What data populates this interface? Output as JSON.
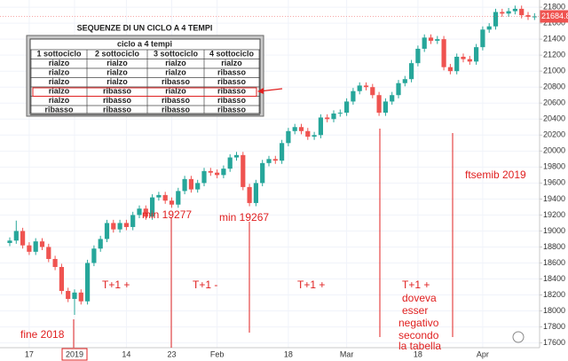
{
  "chart_data": {
    "type": "candlestick",
    "categories": [
      null,
      null,
      null,
      "17",
      null,
      null,
      null,
      null,
      null,
      null,
      "2019",
      null,
      null,
      null,
      null,
      null,
      null,
      null,
      "14",
      null,
      null,
      null,
      null,
      null,
      null,
      "23",
      null,
      null,
      null,
      null,
      null,
      null,
      "Feb",
      null,
      null,
      null,
      null,
      null,
      null,
      null,
      null,
      null,
      null,
      "18",
      null,
      null,
      null,
      null,
      null,
      null,
      null,
      null,
      "Mar",
      null,
      null,
      null,
      null,
      null,
      null,
      null,
      null,
      null,
      null,
      "18",
      null,
      null,
      null,
      null,
      null,
      null,
      null,
      null,
      null,
      "Apr",
      null,
      null,
      null,
      null,
      null,
      null,
      null,
      null
    ],
    "open": [
      18850,
      18880,
      19000,
      18820,
      18740,
      18870,
      18800,
      18650,
      18550,
      18250,
      18150,
      18230,
      18120,
      18600,
      18780,
      18900,
      19100,
      19020,
      19100,
      19050,
      19200,
      19280,
      19180,
      19420,
      19450,
      19380,
      19330,
      19500,
      19650,
      19520,
      19600,
      19750,
      19730,
      19700,
      19780,
      19920,
      19950,
      19550,
      19350,
      19600,
      19850,
      19900,
      19880,
      20100,
      20250,
      20300,
      20250,
      20180,
      20200,
      20420,
      20400,
      20470,
      20480,
      20620,
      20750,
      20820,
      20800,
      20700,
      20480,
      20620,
      20700,
      20850,
      20900,
      21100,
      21280,
      21420,
      21380,
      21400,
      21050,
      21000,
      21180,
      21150,
      21120,
      21300,
      21520,
      21560,
      21740,
      21720,
      21750,
      21780,
      21700,
      21680
    ],
    "high": [
      18920,
      19130,
      19040,
      18860,
      18910,
      18910,
      18840,
      18690,
      18590,
      18290,
      18270,
      18270,
      18640,
      18820,
      18940,
      19140,
      19140,
      19140,
      19140,
      19240,
      19320,
      19320,
      19460,
      19490,
      19490,
      19420,
      19540,
      19690,
      19690,
      19640,
      19790,
      19790,
      19770,
      19820,
      19960,
      19990,
      19990,
      19590,
      19640,
      19890,
      19940,
      19940,
      20140,
      20290,
      20340,
      20340,
      20290,
      20240,
      20460,
      20460,
      20510,
      20520,
      20660,
      20790,
      20860,
      20860,
      20840,
      20740,
      20660,
      20740,
      20890,
      20940,
      21140,
      21320,
      21460,
      21460,
      21440,
      21440,
      21090,
      21220,
      21220,
      21190,
      21340,
      21560,
      21600,
      21780,
      21780,
      21790,
      21820,
      21820,
      21740,
      21725
    ],
    "low": [
      18810,
      18840,
      18780,
      18700,
      18700,
      18760,
      18610,
      18510,
      18210,
      18110,
      17950,
      18080,
      18080,
      18560,
      18740,
      18860,
      18980,
      18980,
      19010,
      19010,
      19160,
      19140,
      19140,
      19380,
      19340,
      19290,
      19290,
      19460,
      19480,
      19480,
      19560,
      19690,
      19660,
      19660,
      19740,
      19880,
      19510,
      19310,
      19310,
      19560,
      19810,
      19840,
      19840,
      20060,
      20210,
      20210,
      20140,
      20140,
      20160,
      20360,
      20360,
      20430,
      20440,
      20580,
      20710,
      20760,
      20660,
      20440,
      20440,
      20580,
      20660,
      20810,
      20860,
      21060,
      21240,
      21340,
      21340,
      21010,
      20960,
      20960,
      21110,
      21080,
      21080,
      21260,
      21480,
      21520,
      21680,
      21680,
      21710,
      21660,
      21640,
      21640
    ],
    "close": [
      18880,
      19000,
      18820,
      18740,
      18870,
      18800,
      18650,
      18550,
      18250,
      18150,
      18230,
      18120,
      18600,
      18780,
      18900,
      19100,
      19020,
      19100,
      19050,
      19200,
      19280,
      19180,
      19420,
      19450,
      19380,
      19330,
      19500,
      19650,
      19520,
      19600,
      19750,
      19730,
      19700,
      19780,
      19920,
      19950,
      19550,
      19350,
      19600,
      19850,
      19900,
      19880,
      20100,
      20250,
      20300,
      20250,
      20180,
      20200,
      20420,
      20400,
      20470,
      20480,
      20620,
      20750,
      20820,
      20800,
      20700,
      20480,
      20620,
      20700,
      20850,
      20900,
      21100,
      21280,
      21420,
      21380,
      21400,
      21050,
      21000,
      21180,
      21150,
      21120,
      21300,
      21520,
      21560,
      21740,
      21720,
      21750,
      21780,
      21700,
      21680,
      21684.84
    ],
    "up_color": "#26a69a",
    "down_color": "#ef5350",
    "ylim": [
      17540,
      21890
    ],
    "yticks": [
      17600,
      17800,
      18000,
      18200,
      18400,
      18600,
      18800,
      19000,
      19200,
      19400,
      19600,
      19800,
      20000,
      20200,
      20400,
      20600,
      20800,
      21000,
      21200,
      21400,
      21600,
      21800
    ],
    "grid": true,
    "annotations": [
      "min 19277",
      "min 19267",
      "fine 2018",
      "T+1  +",
      "T+1  -",
      "T+1  +",
      "T+1  +",
      "doveva",
      "esser",
      "negativo",
      "secondo",
      "la tabella",
      "ftsemib 2019"
    ]
  },
  "table": {
    "title": "SEQUENZE DI UN CICLO A 4 TEMPI",
    "header": "ciclo a 4 tempi",
    "columns": [
      "1 sottociclo",
      "2 sottociclo",
      "3 sottociclo",
      "4 sottociclo"
    ],
    "rows": [
      [
        "rialzo",
        "rialzo",
        "rialzo",
        "rialzo"
      ],
      [
        "rialzo",
        "rialzo",
        "rialzo",
        "ribasso"
      ],
      [
        "rialzo",
        "rialzo",
        "ribasso",
        "ribasso"
      ],
      [
        "rialzo",
        "ribasso",
        "rialzo",
        "ribasso"
      ],
      [
        "rialzo",
        "ribasso",
        "ribasso",
        "ribasso"
      ],
      [
        "ribasso",
        "ribasso",
        "ribasso",
        "ribasso"
      ]
    ]
  }
}
